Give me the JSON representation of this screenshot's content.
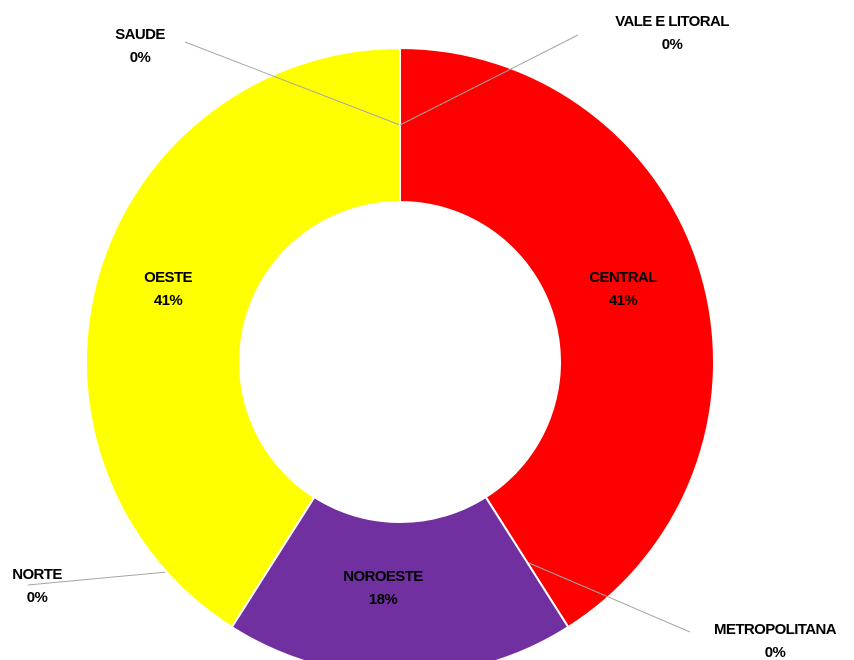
{
  "chart_data": {
    "type": "donut",
    "categories": [
      "CENTRAL",
      "METROPOLITANA",
      "NOROESTE",
      "NORTE",
      "OESTE",
      "SAUDE",
      "VALE E LITORAL"
    ],
    "values": [
      41,
      0,
      18,
      0,
      41,
      0,
      0
    ],
    "value_labels": [
      "41%",
      "0%",
      "18%",
      "0%",
      "41%",
      "0%",
      "0%"
    ],
    "colors": [
      "#ff0000",
      "#4472c4",
      "#7030a0",
      "#a5a5a5",
      "#ffff00",
      "#70ad47",
      "#5b9bd5"
    ]
  }
}
